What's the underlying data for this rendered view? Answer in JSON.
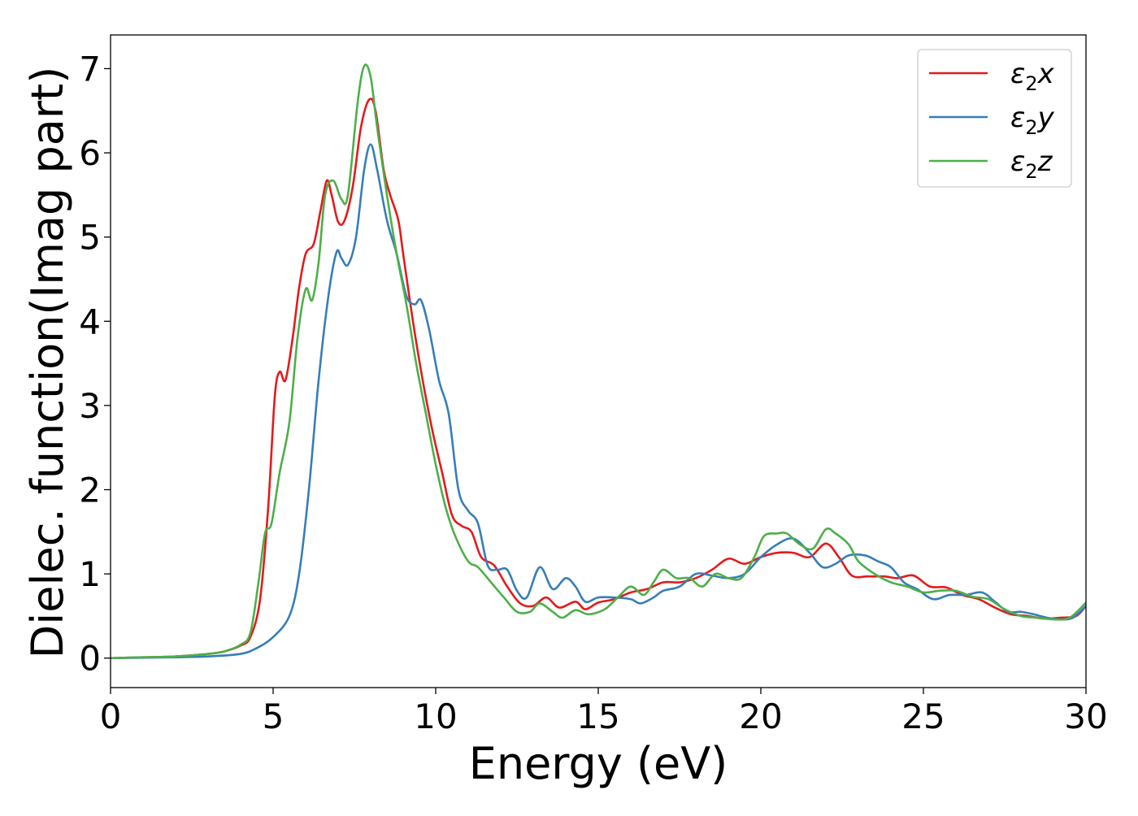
{
  "chart_data": {
    "type": "line",
    "xlabel": "Energy (eV)",
    "ylabel": "Dielec. function(Imag part)",
    "xlim": [
      0,
      30
    ],
    "ylim": [
      -0.35,
      7.4
    ],
    "xticks": [
      0,
      5,
      10,
      15,
      20,
      25,
      30
    ],
    "yticks": [
      0,
      1,
      2,
      3,
      4,
      5,
      6,
      7
    ],
    "grid": false,
    "legend_position": "top-right",
    "series": [
      {
        "name": "ε₂x",
        "legend_base": "ε",
        "legend_sub": "2",
        "legend_tail": "x",
        "color": "#e41a1c",
        "points": [
          [
            0,
            0
          ],
          [
            1,
            0.01
          ],
          [
            2,
            0.02
          ],
          [
            3,
            0.05
          ],
          [
            3.5,
            0.08
          ],
          [
            4,
            0.15
          ],
          [
            4.3,
            0.25
          ],
          [
            4.6,
            0.7
          ],
          [
            4.85,
            1.8
          ],
          [
            5.05,
            3.1
          ],
          [
            5.2,
            3.4
          ],
          [
            5.38,
            3.3
          ],
          [
            5.6,
            3.8
          ],
          [
            5.8,
            4.4
          ],
          [
            6.0,
            4.8
          ],
          [
            6.25,
            4.92
          ],
          [
            6.45,
            5.3
          ],
          [
            6.65,
            5.67
          ],
          [
            6.8,
            5.5
          ],
          [
            7.0,
            5.18
          ],
          [
            7.2,
            5.2
          ],
          [
            7.45,
            5.6
          ],
          [
            7.7,
            6.3
          ],
          [
            7.95,
            6.63
          ],
          [
            8.15,
            6.5
          ],
          [
            8.4,
            5.8
          ],
          [
            8.6,
            5.5
          ],
          [
            8.85,
            5.2
          ],
          [
            9.0,
            4.8
          ],
          [
            9.3,
            4.0
          ],
          [
            9.6,
            3.3
          ],
          [
            9.9,
            2.7
          ],
          [
            10.2,
            2.2
          ],
          [
            10.5,
            1.7
          ],
          [
            10.8,
            1.57
          ],
          [
            11.1,
            1.5
          ],
          [
            11.4,
            1.2
          ],
          [
            11.8,
            1.1
          ],
          [
            12.2,
            0.85
          ],
          [
            12.6,
            0.65
          ],
          [
            13.0,
            0.62
          ],
          [
            13.4,
            0.72
          ],
          [
            13.8,
            0.6
          ],
          [
            14.3,
            0.67
          ],
          [
            14.6,
            0.58
          ],
          [
            15.0,
            0.66
          ],
          [
            15.5,
            0.7
          ],
          [
            16.0,
            0.78
          ],
          [
            16.5,
            0.82
          ],
          [
            17.0,
            0.9
          ],
          [
            17.5,
            0.9
          ],
          [
            18.0,
            0.95
          ],
          [
            18.5,
            1.05
          ],
          [
            19.0,
            1.18
          ],
          [
            19.5,
            1.12
          ],
          [
            20.0,
            1.2
          ],
          [
            20.5,
            1.25
          ],
          [
            21.0,
            1.25
          ],
          [
            21.5,
            1.2
          ],
          [
            22.0,
            1.36
          ],
          [
            22.4,
            1.2
          ],
          [
            22.8,
            0.98
          ],
          [
            23.3,
            0.97
          ],
          [
            23.8,
            0.97
          ],
          [
            24.2,
            0.95
          ],
          [
            24.7,
            0.98
          ],
          [
            25.2,
            0.85
          ],
          [
            25.7,
            0.84
          ],
          [
            26.2,
            0.75
          ],
          [
            26.7,
            0.7
          ],
          [
            27.2,
            0.6
          ],
          [
            27.7,
            0.52
          ],
          [
            28.2,
            0.5
          ],
          [
            28.7,
            0.47
          ],
          [
            29.2,
            0.48
          ],
          [
            29.7,
            0.5
          ],
          [
            30.0,
            0.62
          ]
        ]
      },
      {
        "name": "ε₂y",
        "legend_base": "ε",
        "legend_sub": "2",
        "legend_tail": "y",
        "color": "#377eb8",
        "points": [
          [
            0,
            0
          ],
          [
            1,
            0.005
          ],
          [
            2,
            0.01
          ],
          [
            3,
            0.02
          ],
          [
            4,
            0.05
          ],
          [
            4.5,
            0.12
          ],
          [
            5.0,
            0.25
          ],
          [
            5.5,
            0.5
          ],
          [
            5.8,
            1.0
          ],
          [
            6.1,
            2.0
          ],
          [
            6.4,
            3.3
          ],
          [
            6.7,
            4.3
          ],
          [
            6.95,
            4.82
          ],
          [
            7.1,
            4.75
          ],
          [
            7.3,
            4.67
          ],
          [
            7.55,
            5.0
          ],
          [
            7.8,
            5.8
          ],
          [
            8.0,
            6.1
          ],
          [
            8.2,
            5.8
          ],
          [
            8.5,
            5.2
          ],
          [
            8.8,
            4.8
          ],
          [
            9.1,
            4.3
          ],
          [
            9.35,
            4.2
          ],
          [
            9.55,
            4.25
          ],
          [
            9.8,
            3.9
          ],
          [
            10.1,
            3.3
          ],
          [
            10.4,
            2.9
          ],
          [
            10.7,
            2.0
          ],
          [
            11.0,
            1.75
          ],
          [
            11.3,
            1.6
          ],
          [
            11.6,
            1.1
          ],
          [
            11.9,
            1.05
          ],
          [
            12.2,
            1.05
          ],
          [
            12.5,
            0.8
          ],
          [
            12.8,
            0.72
          ],
          [
            13.2,
            1.08
          ],
          [
            13.6,
            0.82
          ],
          [
            14.0,
            0.95
          ],
          [
            14.3,
            0.85
          ],
          [
            14.6,
            0.67
          ],
          [
            15.0,
            0.72
          ],
          [
            15.5,
            0.72
          ],
          [
            16.0,
            0.7
          ],
          [
            16.3,
            0.65
          ],
          [
            16.7,
            0.72
          ],
          [
            17.0,
            0.8
          ],
          [
            17.5,
            0.85
          ],
          [
            18.0,
            1.0
          ],
          [
            18.5,
            0.98
          ],
          [
            19.0,
            0.95
          ],
          [
            19.5,
            1.0
          ],
          [
            20.0,
            1.2
          ],
          [
            20.5,
            1.35
          ],
          [
            21.0,
            1.42
          ],
          [
            21.5,
            1.25
          ],
          [
            21.9,
            1.08
          ],
          [
            22.3,
            1.12
          ],
          [
            22.7,
            1.22
          ],
          [
            23.2,
            1.22
          ],
          [
            23.6,
            1.15
          ],
          [
            24.0,
            1.08
          ],
          [
            24.4,
            0.9
          ],
          [
            24.8,
            0.82
          ],
          [
            25.3,
            0.7
          ],
          [
            25.8,
            0.75
          ],
          [
            26.3,
            0.75
          ],
          [
            26.8,
            0.78
          ],
          [
            27.2,
            0.67
          ],
          [
            27.6,
            0.55
          ],
          [
            28.0,
            0.55
          ],
          [
            28.4,
            0.52
          ],
          [
            28.8,
            0.48
          ],
          [
            29.2,
            0.46
          ],
          [
            29.6,
            0.48
          ],
          [
            30.0,
            0.62
          ]
        ]
      },
      {
        "name": "ε₂z",
        "legend_base": "ε",
        "legend_sub": "2",
        "legend_tail": "z",
        "color": "#4daf4a",
        "points": [
          [
            0,
            0
          ],
          [
            1,
            0.01
          ],
          [
            2,
            0.02
          ],
          [
            3,
            0.05
          ],
          [
            3.5,
            0.08
          ],
          [
            4,
            0.16
          ],
          [
            4.3,
            0.3
          ],
          [
            4.55,
            0.9
          ],
          [
            4.75,
            1.48
          ],
          [
            4.95,
            1.6
          ],
          [
            5.2,
            2.2
          ],
          [
            5.5,
            2.8
          ],
          [
            5.75,
            3.8
          ],
          [
            6.0,
            4.38
          ],
          [
            6.2,
            4.25
          ],
          [
            6.4,
            4.7
          ],
          [
            6.6,
            5.5
          ],
          [
            6.85,
            5.67
          ],
          [
            7.1,
            5.45
          ],
          [
            7.3,
            5.5
          ],
          [
            7.6,
            6.6
          ],
          [
            7.8,
            7.03
          ],
          [
            8.0,
            6.9
          ],
          [
            8.2,
            6.3
          ],
          [
            8.5,
            5.5
          ],
          [
            8.8,
            4.8
          ],
          [
            9.1,
            4.2
          ],
          [
            9.4,
            3.5
          ],
          [
            9.7,
            2.9
          ],
          [
            10.0,
            2.3
          ],
          [
            10.3,
            1.8
          ],
          [
            10.6,
            1.45
          ],
          [
            11.0,
            1.15
          ],
          [
            11.3,
            1.08
          ],
          [
            11.7,
            0.9
          ],
          [
            12.1,
            0.72
          ],
          [
            12.5,
            0.55
          ],
          [
            12.9,
            0.55
          ],
          [
            13.2,
            0.65
          ],
          [
            13.6,
            0.55
          ],
          [
            13.9,
            0.48
          ],
          [
            14.3,
            0.57
          ],
          [
            14.7,
            0.52
          ],
          [
            15.2,
            0.58
          ],
          [
            15.6,
            0.72
          ],
          [
            16.0,
            0.85
          ],
          [
            16.4,
            0.75
          ],
          [
            16.7,
            0.9
          ],
          [
            17.0,
            1.05
          ],
          [
            17.4,
            0.95
          ],
          [
            17.8,
            0.95
          ],
          [
            18.2,
            0.85
          ],
          [
            18.6,
            1.0
          ],
          [
            19.0,
            0.95
          ],
          [
            19.4,
            0.95
          ],
          [
            19.8,
            1.2
          ],
          [
            20.1,
            1.45
          ],
          [
            20.5,
            1.48
          ],
          [
            20.8,
            1.48
          ],
          [
            21.2,
            1.35
          ],
          [
            21.6,
            1.3
          ],
          [
            22.0,
            1.53
          ],
          [
            22.3,
            1.48
          ],
          [
            22.7,
            1.35
          ],
          [
            23.0,
            1.15
          ],
          [
            23.5,
            1.0
          ],
          [
            24.0,
            0.9
          ],
          [
            24.5,
            0.85
          ],
          [
            25.0,
            0.78
          ],
          [
            25.5,
            0.8
          ],
          [
            26.0,
            0.8
          ],
          [
            26.5,
            0.73
          ],
          [
            27.0,
            0.7
          ],
          [
            27.5,
            0.58
          ],
          [
            28.0,
            0.5
          ],
          [
            28.5,
            0.48
          ],
          [
            29.0,
            0.46
          ],
          [
            29.5,
            0.48
          ],
          [
            30.0,
            0.66
          ]
        ]
      }
    ]
  }
}
